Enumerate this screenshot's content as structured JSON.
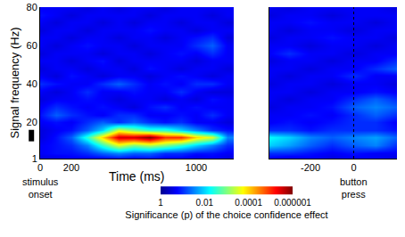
{
  "chart_data": {
    "type": "heatmap",
    "ylabel": "Signal frequency (Hz)",
    "ylim": [
      1,
      80
    ],
    "yticks": [
      1,
      20,
      40,
      60,
      80
    ],
    "marked_band": [
      10,
      16
    ],
    "color": "jet",
    "y": [
      1,
      4,
      8,
      12,
      16,
      20,
      24,
      28,
      32,
      36,
      40,
      44,
      48,
      52,
      56,
      60,
      64,
      68,
      72,
      76,
      80
    ],
    "colorbar": {
      "title": "Significance (p) of the choice confidence effect",
      "log": true,
      "range": [
        1,
        1e-06
      ],
      "ticks": [
        1,
        0.01,
        0.0001,
        1e-06
      ]
    },
    "panels": [
      {
        "xlabel": "Time (ms)",
        "xlim": [
          0,
          1240
        ],
        "xticks": [
          0,
          200,
          1000
        ],
        "annotations": [
          {
            "text": "stimulus onset",
            "x": 0
          }
        ],
        "x": [
          0,
          100,
          200,
          300,
          400,
          500,
          600,
          700,
          800,
          900,
          1000,
          1100,
          1200
        ],
        "cells": [
          [
            0.3,
            0.3,
            0.2,
            0.2,
            0.2,
            0.15,
            0.2,
            0.15,
            0.2,
            0.2,
            0.3,
            0.2,
            0.3
          ],
          [
            0.2,
            0.15,
            0.15,
            0.1,
            0.05,
            0.03,
            0.05,
            0.05,
            0.1,
            0.1,
            0.15,
            0.15,
            0.2
          ],
          [
            0.2,
            0.15,
            0.1,
            0.03,
            0.003,
            0.0003,
            0.001,
            0.0005,
            0.001,
            0.003,
            0.01,
            0.03,
            0.1
          ],
          [
            0.3,
            0.15,
            0.05,
            0.003,
            0.0001,
            3e-06,
            3e-06,
            1e-06,
            1e-05,
            1e-05,
            0.0001,
            0.0003,
            0.03
          ],
          [
            0.3,
            0.2,
            0.15,
            0.05,
            0.01,
            0.0003,
            0.001,
            0.003,
            0.003,
            0.01,
            0.03,
            0.1,
            0.15
          ],
          [
            0.2,
            0.15,
            0.2,
            0.1,
            0.05,
            0.1,
            0.05,
            0.1,
            0.15,
            0.1,
            0.2,
            0.2,
            0.3
          ],
          [
            0.15,
            0.05,
            0.1,
            0.15,
            0.2,
            0.1,
            0.1,
            0.2,
            0.2,
            0.15,
            0.2,
            0.1,
            0.2
          ],
          [
            0.2,
            0.1,
            0.15,
            0.2,
            0.15,
            0.2,
            0.3,
            0.15,
            0.1,
            0.2,
            0.15,
            0.2,
            0.2
          ],
          [
            0.3,
            0.2,
            0.2,
            0.15,
            0.2,
            0.3,
            0.2,
            0.2,
            0.3,
            0.2,
            0.3,
            0.15,
            0.2
          ],
          [
            0.2,
            0.3,
            0.2,
            0.1,
            0.2,
            0.2,
            0.15,
            0.2,
            0.2,
            0.1,
            0.2,
            0.3,
            0.3
          ],
          [
            0.1,
            0.15,
            0.2,
            0.2,
            0.1,
            0.05,
            0.1,
            0.2,
            0.15,
            0.2,
            0.1,
            0.1,
            0.2
          ],
          [
            0.2,
            0.3,
            0.15,
            0.2,
            0.3,
            0.2,
            0.2,
            0.3,
            0.2,
            0.15,
            0.2,
            0.3,
            0.2
          ],
          [
            0.3,
            0.2,
            0.2,
            0.3,
            0.2,
            0.2,
            0.3,
            0.15,
            0.2,
            0.3,
            0.2,
            0.2,
            0.3
          ],
          [
            0.2,
            0.2,
            0.3,
            0.2,
            0.15,
            0.3,
            0.2,
            0.2,
            0.2,
            0.2,
            0.3,
            0.2,
            0.2
          ],
          [
            0.3,
            0.2,
            0.2,
            0.2,
            0.3,
            0.2,
            0.2,
            0.3,
            0.2,
            0.15,
            0.2,
            0.1,
            0.2
          ],
          [
            0.2,
            0.3,
            0.2,
            0.15,
            0.2,
            0.2,
            0.3,
            0.2,
            0.2,
            0.2,
            0.1,
            0.05,
            0.2
          ],
          [
            0.2,
            0.2,
            0.3,
            0.2,
            0.2,
            0.3,
            0.2,
            0.2,
            0.3,
            0.2,
            0.15,
            0.1,
            0.3
          ],
          [
            0.3,
            0.2,
            0.2,
            0.3,
            0.2,
            0.2,
            0.2,
            0.15,
            0.2,
            0.2,
            0.3,
            0.2,
            0.2
          ],
          [
            0.2,
            0.3,
            0.2,
            0.2,
            0.3,
            0.2,
            0.3,
            0.2,
            0.2,
            0.3,
            0.2,
            0.2,
            0.3
          ],
          [
            0.15,
            0.2,
            0.3,
            0.2,
            0.2,
            0.2,
            0.2,
            0.3,
            0.2,
            0.2,
            0.2,
            0.3,
            0.2
          ],
          [
            0.2,
            0.2,
            0.2,
            0.3,
            0.2,
            0.3,
            0.2,
            0.2,
            0.3,
            0.2,
            0.2,
            0.2,
            0.2
          ]
        ]
      },
      {
        "xlim": [
          -390,
          200
        ],
        "xticks": [
          -200,
          0
        ],
        "annotations": [
          {
            "text": "button press",
            "x": 0
          }
        ],
        "event_line": 0,
        "x": [
          -400,
          -300,
          -200,
          -100,
          0,
          100,
          200
        ],
        "cells": [
          [
            0.2,
            0.3,
            0.2,
            0.3,
            0.2,
            0.2,
            0.3
          ],
          [
            0.1,
            0.1,
            0.15,
            0.2,
            0.15,
            0.2,
            0.2
          ],
          [
            0.01,
            0.02,
            0.05,
            0.1,
            0.05,
            0.03,
            0.1
          ],
          [
            0.005,
            0.01,
            0.03,
            0.05,
            0.03,
            0.02,
            0.05
          ],
          [
            0.1,
            0.1,
            0.15,
            0.1,
            0.1,
            0.1,
            0.15
          ],
          [
            0.2,
            0.15,
            0.2,
            0.15,
            0.1,
            0.1,
            0.2
          ],
          [
            0.2,
            0.2,
            0.15,
            0.2,
            0.1,
            0.05,
            0.1
          ],
          [
            0.3,
            0.2,
            0.2,
            0.15,
            0.05,
            0.03,
            0.05
          ],
          [
            0.2,
            0.3,
            0.2,
            0.2,
            0.1,
            0.05,
            0.1
          ],
          [
            0.2,
            0.2,
            0.3,
            0.2,
            0.2,
            0.15,
            0.2
          ],
          [
            0.3,
            0.2,
            0.2,
            0.3,
            0.2,
            0.2,
            0.3
          ],
          [
            0.2,
            0.3,
            0.2,
            0.2,
            0.1,
            0.2,
            0.2
          ],
          [
            0.2,
            0.2,
            0.3,
            0.2,
            0.2,
            0.1,
            0.05
          ],
          [
            0.3,
            0.2,
            0.2,
            0.3,
            0.2,
            0.2,
            0.1
          ],
          [
            0.2,
            0.1,
            0.2,
            0.2,
            0.3,
            0.2,
            0.2
          ],
          [
            0.2,
            0.2,
            0.3,
            0.2,
            0.2,
            0.3,
            0.2
          ],
          [
            0.3,
            0.2,
            0.2,
            0.15,
            0.2,
            0.2,
            0.3
          ],
          [
            0.2,
            0.3,
            0.2,
            0.2,
            0.3,
            0.2,
            0.2
          ],
          [
            0.2,
            0.2,
            0.15,
            0.2,
            0.2,
            0.3,
            0.2
          ],
          [
            0.3,
            0.2,
            0.2,
            0.3,
            0.2,
            0.2,
            0.2
          ],
          [
            0.2,
            0.3,
            0.2,
            0.2,
            0.2,
            0.2,
            0.3
          ]
        ]
      }
    ]
  }
}
